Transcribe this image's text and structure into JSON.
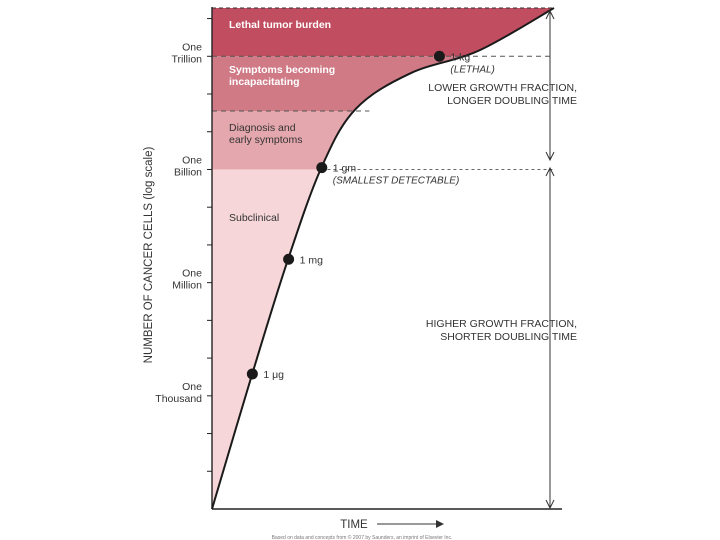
{
  "chart_data": {
    "type": "line",
    "title": "",
    "xlabel": "TIME",
    "ylabel": "NUMBER OF CANCER CELLS (log scale)",
    "y_ticks": [
      {
        "name": "one-trillion",
        "lines": [
          "One",
          "Trillion"
        ],
        "log10": 12
      },
      {
        "name": "one-billion",
        "lines": [
          "One",
          "Billion"
        ],
        "log10": 9
      },
      {
        "name": "one-million",
        "lines": [
          "One",
          "Million"
        ],
        "log10": 6
      },
      {
        "name": "one-thousand",
        "lines": [
          "One",
          "Thousand"
        ],
        "log10": 3
      }
    ],
    "ylim_log10": [
      0,
      13.28
    ],
    "xlim": [
      0,
      100
    ],
    "zones": [
      {
        "name": "lethal-tumor-burden",
        "label": [
          "Lethal tumor burden"
        ],
        "from": 12.0,
        "to": 13.28,
        "color": "#c14e60",
        "text_color": "#ffffff",
        "bold": true
      },
      {
        "name": "symptoms-incapacitating",
        "label": [
          "Symptoms becoming",
          "incapacitating"
        ],
        "from": 10.55,
        "to": 12.0,
        "color": "#cf7a85",
        "text_color": "#ffffff",
        "bold": true
      },
      {
        "name": "diagnosis-early-symptoms",
        "label": [
          "Diagnosis and",
          "early symptoms"
        ],
        "from": 9.0,
        "to": 10.55,
        "color": "#e3a7ad",
        "text_color": "#333333",
        "bold": false
      },
      {
        "name": "subclinical",
        "label": [
          "Subclinical"
        ],
        "from": 0,
        "to": 9.0,
        "color": "#f6d6d8",
        "text_color": "#333333",
        "bold": false
      }
    ],
    "curve": [
      {
        "x": 0,
        "y": 0
      },
      {
        "x": 12,
        "y": 3.65
      },
      {
        "x": 22,
        "y": 6.55
      },
      {
        "x": 32,
        "y": 9.05
      },
      {
        "x": 42,
        "y": 10.6
      },
      {
        "x": 58,
        "y": 11.55
      },
      {
        "x": 78,
        "y": 12.15
      },
      {
        "x": 100,
        "y": 13.28
      }
    ],
    "points": [
      {
        "name": "point-1-microgram",
        "x": 11.8,
        "y": 3.58,
        "labels": [
          "1 μg"
        ]
      },
      {
        "name": "point-1-milligram",
        "x": 22.4,
        "y": 6.62,
        "labels": [
          "1 mg"
        ]
      },
      {
        "name": "point-1-gram",
        "x": 32.1,
        "y": 9.05,
        "labels": [
          "1 gm",
          "(SMALLEST DETECTABLE)"
        ]
      },
      {
        "name": "point-1-kilogram",
        "x": 66.5,
        "y": 12.0,
        "labels": [
          "1 kg",
          "(LETHAL)"
        ]
      }
    ],
    "annotations": [
      {
        "name": "lower-growth-fraction",
        "lines": [
          "LOWER GROWTH FRACTION,",
          "LONGER DOUBLING TIME"
        ]
      },
      {
        "name": "higher-growth-fraction",
        "lines": [
          "HIGHER GROWTH FRACTION,",
          "SHORTER DOUBLING TIME"
        ]
      }
    ],
    "caption": "Based on data and concepts from © 2007 by Saunders, an imprint of Elsevier Inc."
  }
}
